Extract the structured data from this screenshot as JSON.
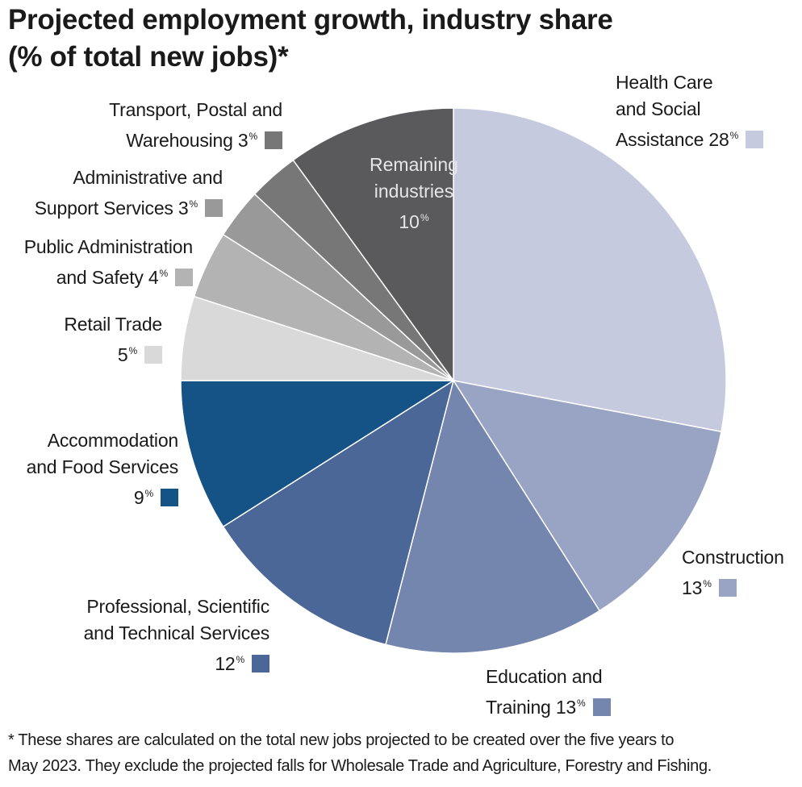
{
  "title_lines": [
    "Projected employment growth, industry share",
    "(% of total new jobs)*"
  ],
  "chart_data": {
    "type": "pie",
    "title": "Projected employment growth, industry share (% of total new jobs)*",
    "unit_suffix": "%",
    "start_angle_deg": 0,
    "direction": "clockwise",
    "slices": [
      {
        "label_lines": [
          "Health Care",
          "and Social",
          "Assistance 28"
        ],
        "value": 28,
        "color": "#c5cadf"
      },
      {
        "label_lines": [
          "Construction",
          "13"
        ],
        "value": 13,
        "color": "#99a4c5"
      },
      {
        "label_lines": [
          "Education and",
          "Training 13"
        ],
        "value": 13,
        "color": "#7485ae"
      },
      {
        "label_lines": [
          "Professional, Scientific",
          "and Technical Services",
          "12"
        ],
        "value": 12,
        "color": "#4a6797"
      },
      {
        "label_lines": [
          "Accommodation",
          "and Food Services",
          "9"
        ],
        "value": 9,
        "color": "#155286"
      },
      {
        "label_lines": [
          "Retail Trade",
          "5"
        ],
        "value": 5,
        "color": "#d9d9d9"
      },
      {
        "label_lines": [
          "Public Administration",
          "and Safety 4"
        ],
        "value": 4,
        "color": "#b3b3b3"
      },
      {
        "label_lines": [
          "Administrative and",
          "Support Services 3"
        ],
        "value": 3,
        "color": "#999999"
      },
      {
        "label_lines": [
          "Transport, Postal and",
          "Warehousing 3"
        ],
        "value": 3,
        "color": "#777777"
      },
      {
        "label_lines": [
          "Remaining",
          "industries",
          "10"
        ],
        "value": 10,
        "color": "#5a5a5d"
      }
    ]
  },
  "footnote_lines": [
    "* These shares are calculated on the total new jobs projected to be created over the five years to",
    "May 2023. They exclude the projected falls for Wholesale Trade and Agriculture, Forestry and Fishing."
  ]
}
